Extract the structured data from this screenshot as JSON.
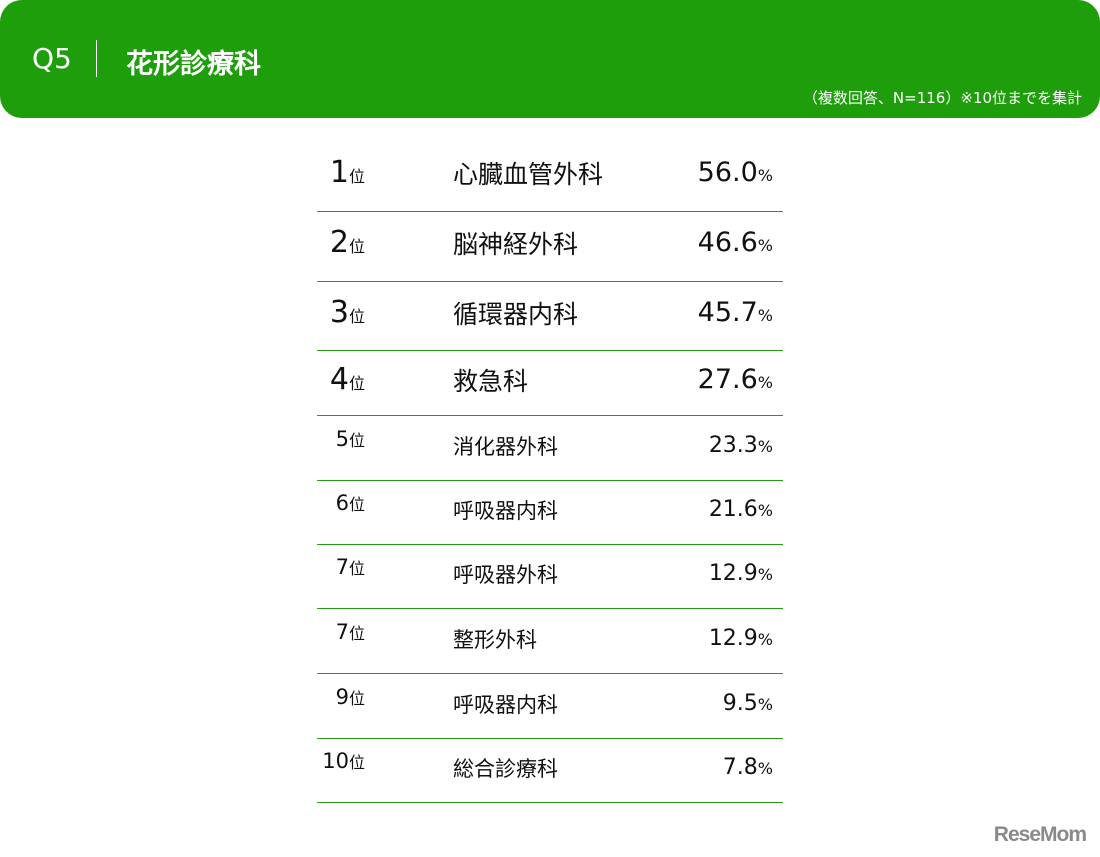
{
  "header": {
    "question": "Q5",
    "title": "花形診療科",
    "note": "（複数回答、N=116）※10位までを集計"
  },
  "colors": {
    "accent": "#1f9e0c",
    "rule": "#2a9a16"
  },
  "rank_suffix": "位",
  "percent_suffix": "%",
  "rows": [
    {
      "rank": "1",
      "name": "心臓血管外科",
      "value": "56.0"
    },
    {
      "rank": "2",
      "name": "脳神経外科",
      "value": "46.6"
    },
    {
      "rank": "3",
      "name": "循環器内科",
      "value": "45.7"
    },
    {
      "rank": "4",
      "name": "救急科",
      "value": "27.6"
    },
    {
      "rank": "5",
      "name": "消化器外科",
      "value": "23.3"
    },
    {
      "rank": "6",
      "name": "呼吸器内科",
      "value": "21.6"
    },
    {
      "rank": "7",
      "name": "呼吸器外科",
      "value": "12.9"
    },
    {
      "rank": "7",
      "name": "整形外科",
      "value": "12.9"
    },
    {
      "rank": "9",
      "name": "呼吸器内科",
      "value": "9.5"
    },
    {
      "rank": "10",
      "name": "総合診療科",
      "value": "7.8"
    }
  ],
  "logo": "ReseMom"
}
